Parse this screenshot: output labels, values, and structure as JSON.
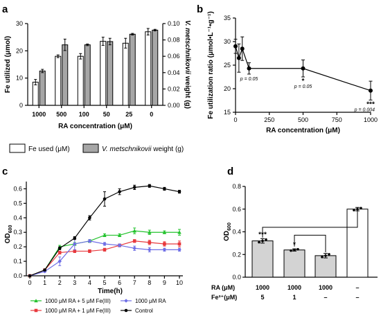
{
  "chart_data": [
    {
      "panel": "a",
      "type": "bar",
      "categories": [
        "1000",
        "500",
        "100",
        "50",
        "25",
        "0"
      ],
      "xlabel": "RA concentration (μM)",
      "ylabel": "Fe utilized (μmol)",
      "ylabel_right_italic": "V. metschnikovii",
      "ylabel_right_rest": " weight (g)",
      "ylim": [
        0,
        30
      ],
      "yticks": [
        "0",
        "10",
        "20",
        "30"
      ],
      "ylim_right": [
        0,
        0.1
      ],
      "yticks_right": [
        "0.00",
        "0.02",
        "0.04",
        "0.06",
        "0.08",
        "0.10"
      ],
      "series": [
        {
          "name": "Fe used (μM)",
          "axis": "left",
          "color": "#ffffff",
          "values": [
            8.5,
            18.0,
            18.0,
            23.5,
            22.8,
            27.0
          ],
          "errors": [
            1.0,
            0.5,
            1.0,
            1.5,
            1.8,
            1.2
          ]
        },
        {
          "name_italic": "V. metschnikovii",
          "name_rest": " weight (g)",
          "axis": "right",
          "color": "#a6a6a6",
          "values": [
            0.042,
            0.074,
            0.074,
            0.078,
            0.087,
            0.092
          ],
          "errors": [
            0.002,
            0.007,
            0.001,
            0.004,
            0.001,
            0.001
          ]
        }
      ],
      "legend_position": "below"
    },
    {
      "panel": "b",
      "type": "line",
      "xlabel": "RA concentration (μM)",
      "ylabel": "Fe utilization ratio (μmol•L⁻¹•g⁻¹)",
      "xlim": [
        0,
        1000
      ],
      "xticks": [
        "0",
        "250",
        "500",
        "750",
        "1000"
      ],
      "ylim": [
        15,
        35
      ],
      "yticks": [
        "15",
        "20",
        "25",
        "30",
        "35"
      ],
      "x": [
        0,
        25,
        50,
        100,
        500,
        1000
      ],
      "y": [
        29.0,
        26.5,
        28.5,
        24.3,
        24.3,
        19.6
      ],
      "errors": [
        1.5,
        3.0,
        2.5,
        1.2,
        1.8,
        2.0
      ],
      "annotations": [
        {
          "x": 100,
          "star": "",
          "text": "p = 0.05"
        },
        {
          "x": 500,
          "star": "*",
          "text": "p = 0.05"
        },
        {
          "x": 1000,
          "star": "***",
          "text": "p = 0.004"
        }
      ]
    },
    {
      "panel": "c",
      "type": "line",
      "xlabel": "Time(h)",
      "ylabel": "OD",
      "ylabel_sub": "600",
      "xlim": [
        0,
        10
      ],
      "xticks": [
        "0",
        "1",
        "2",
        "3",
        "4",
        "5",
        "6",
        "7",
        "8",
        "9",
        "10"
      ],
      "ylim": [
        0,
        0.65
      ],
      "yticks": [
        "0.0",
        "0.1",
        "0.2",
        "0.3",
        "0.4",
        "0.5",
        "0.6"
      ],
      "x": [
        0,
        1,
        2,
        3,
        4,
        5,
        6,
        7,
        8,
        9,
        10
      ],
      "series": [
        {
          "name": "1000 μM RA + 5 μM Fe(III)",
          "color": "#22c22c",
          "marker": "triangle",
          "values": [
            0.0,
            0.04,
            0.2,
            0.22,
            0.24,
            0.28,
            0.28,
            0.31,
            0.3,
            0.3,
            0.3
          ],
          "errors": [
            0,
            0.005,
            0.01,
            0.01,
            0.01,
            0.01,
            0.01,
            0.02,
            0.015,
            0.01,
            0.02
          ]
        },
        {
          "name": "1000 μM RA + 1 μM Fe(III)",
          "color": "#e8393d",
          "marker": "square",
          "values": [
            0.0,
            0.04,
            0.16,
            0.17,
            0.17,
            0.18,
            0.21,
            0.24,
            0.23,
            0.22,
            0.22
          ],
          "errors": [
            0,
            0.005,
            0.01,
            0.01,
            0.01,
            0.01,
            0.01,
            0.01,
            0.015,
            0.015,
            0.02
          ]
        },
        {
          "name": "1000 μM RA",
          "color": "#6e6ee6",
          "marker": "diamond",
          "values": [
            0.0,
            0.03,
            0.1,
            0.22,
            0.24,
            0.22,
            0.21,
            0.19,
            0.18,
            0.18,
            0.18
          ],
          "errors": [
            0,
            0.005,
            0.03,
            0.04,
            0.01,
            0.01,
            0.01,
            0.015,
            0.015,
            0.01,
            0.01
          ]
        },
        {
          "name": "Control",
          "color": "#000000",
          "marker": "circle",
          "values": [
            0.0,
            0.04,
            0.19,
            0.26,
            0.4,
            0.53,
            0.58,
            0.61,
            0.62,
            0.6,
            0.58
          ],
          "errors": [
            0,
            0.005,
            0.01,
            0.01,
            0.015,
            0.05,
            0.02,
            0.015,
            0.01,
            0.01,
            0.01
          ]
        }
      ],
      "legend_position": "below"
    },
    {
      "panel": "d",
      "type": "bar",
      "ylabel": "OD",
      "ylabel_sub": "600",
      "ylim": [
        0,
        0.8
      ],
      "yticks": [
        "0.0",
        "0.2",
        "0.4",
        "0.6",
        "0.8"
      ],
      "values": [
        0.32,
        0.24,
        0.19,
        0.6
      ],
      "errors": [
        0.02,
        0.01,
        0.02,
        0.015
      ],
      "colors": [
        "#d3d3d3",
        "#d3d3d3",
        "#d3d3d3",
        "#ffffff"
      ],
      "significance": [
        "***",
        "*",
        "",
        ""
      ],
      "row_labels": [
        "RA (μM)",
        "Fe³⁺(μM)"
      ],
      "row_values": [
        [
          "1000",
          "1000",
          "1000",
          "–"
        ],
        [
          "5",
          "1",
          "–",
          "–"
        ]
      ]
    }
  ],
  "panel_labels": [
    "a",
    "b",
    "c",
    "d"
  ]
}
